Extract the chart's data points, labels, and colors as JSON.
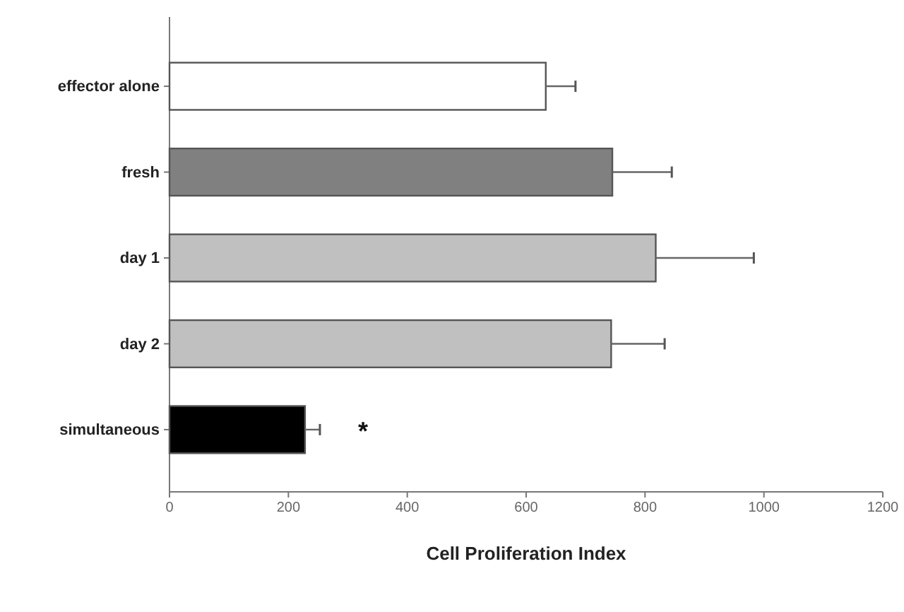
{
  "chart_data": {
    "type": "bar",
    "orientation": "horizontal",
    "xlabel": "Cell Proliferation Index",
    "categories": [
      "effector alone",
      "fresh",
      "day 1",
      "day 2",
      "simultaneous"
    ],
    "values": [
      633,
      745,
      818,
      743,
      228
    ],
    "errors": [
      50,
      100,
      165,
      90,
      25
    ],
    "colors": [
      "#ffffff",
      "#808080",
      "#c0c0c0",
      "#c0c0c0",
      "#000000"
    ],
    "xlim": [
      0,
      1200
    ],
    "xticks": [
      0,
      200,
      400,
      600,
      800,
      1000,
      1200
    ],
    "grid": false,
    "annotations": [
      "*"
    ]
  }
}
